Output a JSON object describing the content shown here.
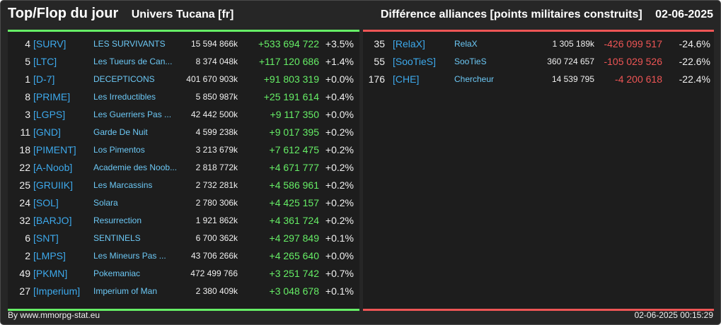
{
  "header": {
    "title": "Top/Flop du jour",
    "server": "Univers Tucana [fr]",
    "subtitle": "Différence alliances [points militaires construits]",
    "date": "02-06-2025"
  },
  "colors": {
    "positive": "#66ee66",
    "negative": "#ee5555",
    "tag": "#3da9ec",
    "name": "#6cc8f5",
    "background": "#262626"
  },
  "top": [
    {
      "rank": "4",
      "tag": "[SURV]",
      "name": "LES SURVIVANTS",
      "points": "15 594 866k",
      "diff": "+533 694 722",
      "pct": "+3.5%"
    },
    {
      "rank": "5",
      "tag": "[LTC]",
      "name": "Les Tueurs de Can...",
      "points": "8 374 048k",
      "diff": "+117 120 686",
      "pct": "+1.4%"
    },
    {
      "rank": "1",
      "tag": "[D-7]",
      "name": "DECEPTICONS",
      "points": "401 670 903k",
      "diff": "+91 803 319",
      "pct": "+0.0%"
    },
    {
      "rank": "8",
      "tag": "[PRIME]",
      "name": "Les Irreductibles",
      "points": "5 850 987k",
      "diff": "+25 191 614",
      "pct": "+0.4%"
    },
    {
      "rank": "3",
      "tag": "[LGPS]",
      "name": "Les Guerriers Pas ...",
      "points": "42 442 500k",
      "diff": "+9 117 350",
      "pct": "+0.0%"
    },
    {
      "rank": "11",
      "tag": "[GND]",
      "name": "Garde De Nuit",
      "points": "4 599 238k",
      "diff": "+9 017 395",
      "pct": "+0.2%"
    },
    {
      "rank": "18",
      "tag": "[PIMENT]",
      "name": "Los Pimentos",
      "points": "3 213 679k",
      "diff": "+7 612 475",
      "pct": "+0.2%"
    },
    {
      "rank": "22",
      "tag": "[A-Noob]",
      "name": "Academie des Noob...",
      "points": "2 818 772k",
      "diff": "+4 671 777",
      "pct": "+0.2%"
    },
    {
      "rank": "25",
      "tag": "[GRUIIK]",
      "name": "Les Marcassins",
      "points": "2 732 281k",
      "diff": "+4 586 961",
      "pct": "+0.2%"
    },
    {
      "rank": "24",
      "tag": "[SOL]",
      "name": "Solara",
      "points": "2 780 306k",
      "diff": "+4 425 157",
      "pct": "+0.2%"
    },
    {
      "rank": "32",
      "tag": "[BARJO]",
      "name": "Resurrection",
      "points": "1 921 862k",
      "diff": "+4 361 724",
      "pct": "+0.2%"
    },
    {
      "rank": "6",
      "tag": "[SNT]",
      "name": "SENTINELS",
      "points": "6 700 362k",
      "diff": "+4 297 849",
      "pct": "+0.1%"
    },
    {
      "rank": "2",
      "tag": "[LMPS]",
      "name": "Les Mineurs Pas ...",
      "points": "43 706 266k",
      "diff": "+4 265 640",
      "pct": "+0.0%"
    },
    {
      "rank": "49",
      "tag": "[PKMN]",
      "name": "Pokemaniac",
      "points": "472 499 766",
      "diff": "+3 251 742",
      "pct": "+0.7%"
    },
    {
      "rank": "27",
      "tag": "[Imperium]",
      "name": "Imperium of Man",
      "points": "2 380 409k",
      "diff": "+3 048 678",
      "pct": "+0.1%"
    }
  ],
  "flop": [
    {
      "rank": "35",
      "tag": "[RelaX]",
      "name": "RelaX",
      "points": "1 305 189k",
      "diff": "-426 099 517",
      "pct": "-24.6%"
    },
    {
      "rank": "55",
      "tag": "[SooTieS]",
      "name": "SooTieS",
      "points": "360 724 657",
      "diff": "-105 029 526",
      "pct": "-22.6%"
    },
    {
      "rank": "176",
      "tag": "[CHE]",
      "name": "Chercheur",
      "points": "14 539 795",
      "diff": "-4 200 618",
      "pct": "-22.4%"
    }
  ],
  "footer": {
    "credit": "By www.mmorpg-stat.eu",
    "timestamp": "02-06-2025 00:15:29"
  }
}
